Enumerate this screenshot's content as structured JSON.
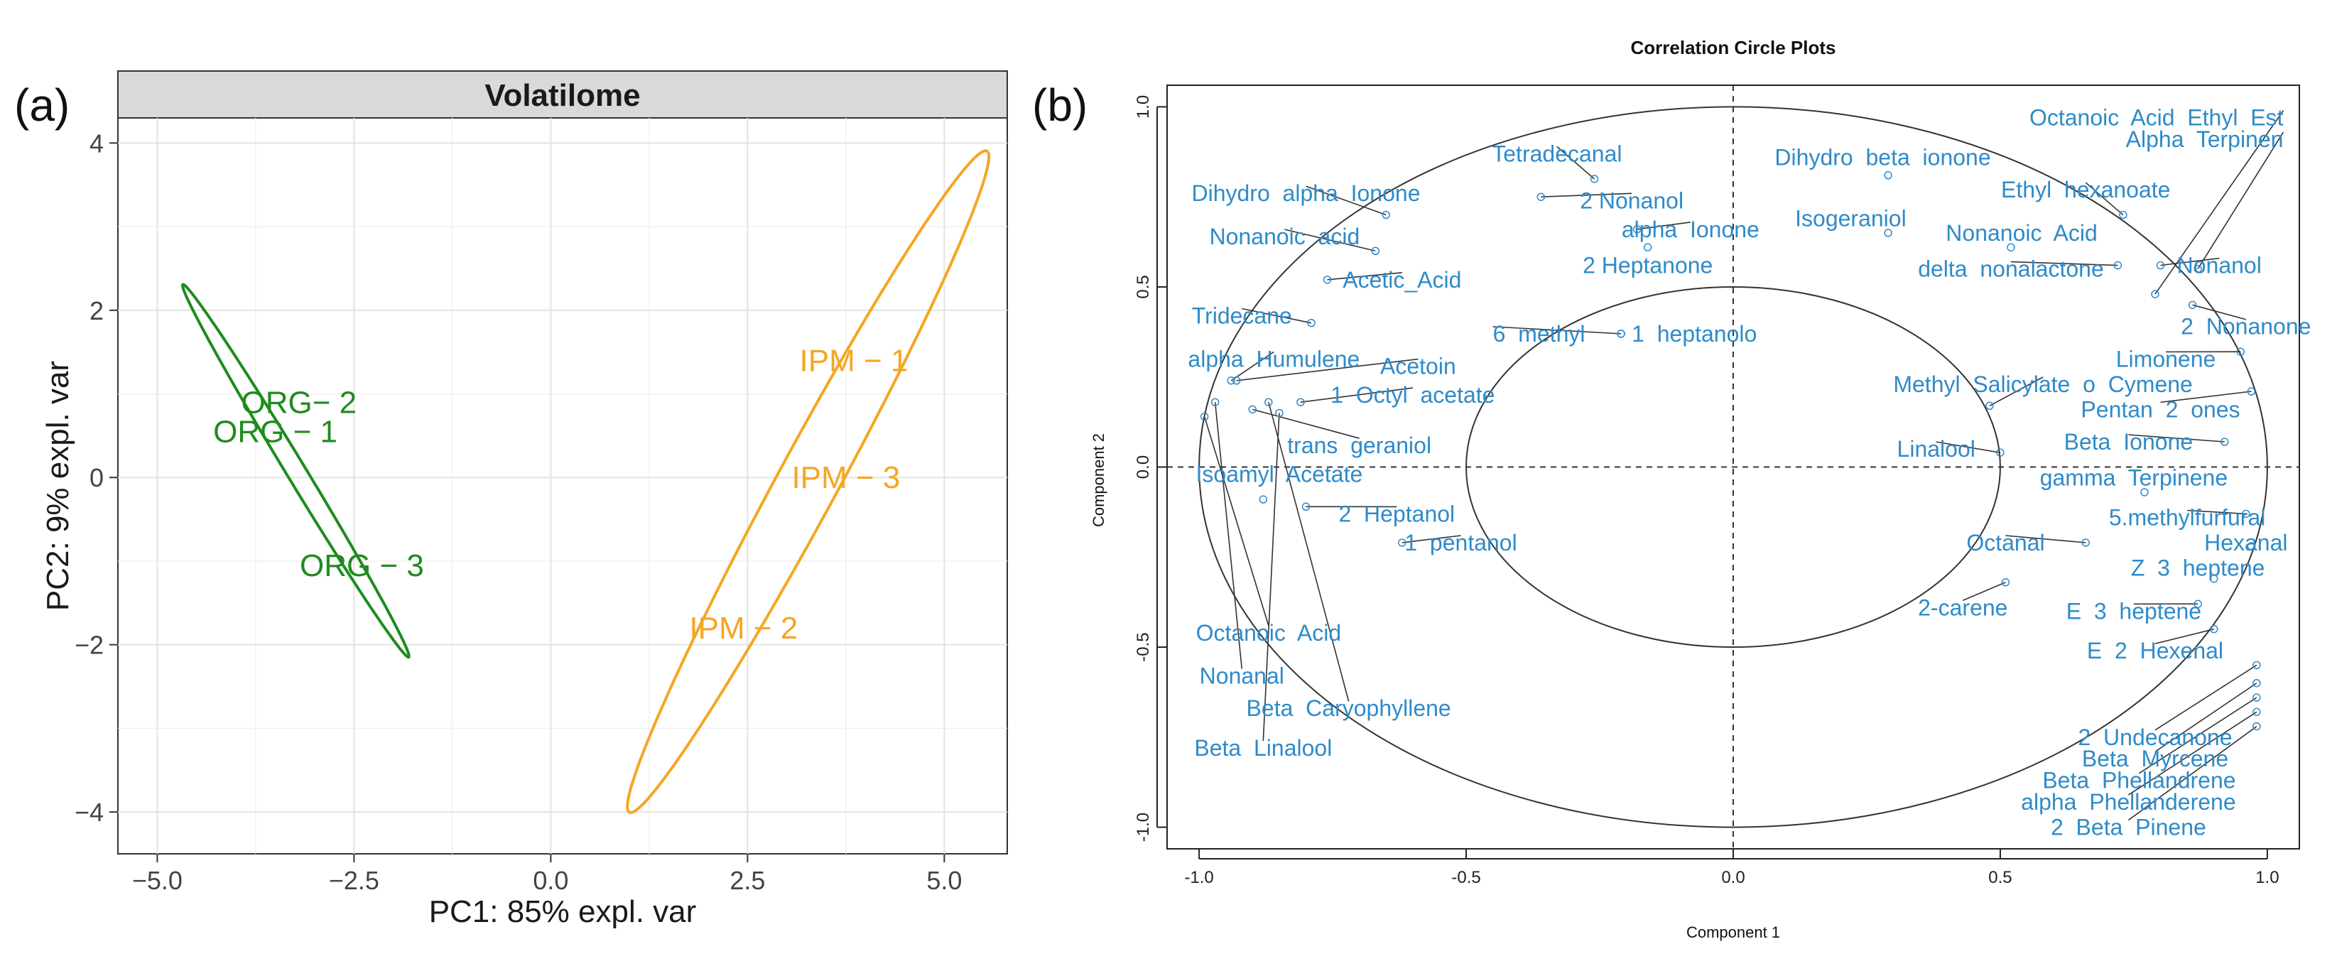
{
  "chart_data": [
    {
      "panel_label": "(a)",
      "type": "scatter",
      "strip_title": "Volatilome",
      "xlabel": "PC1: 85% expl. var",
      "ylabel": "PC2: 9% expl. var",
      "xlim": [
        -5.5,
        5.8
      ],
      "ylim": [
        -4.5,
        4.3
      ],
      "xticks": [
        -5.0,
        -2.5,
        0.0,
        2.5,
        5.0
      ],
      "xtick_labels": [
        "−5.0",
        "−2.5",
        "0.0",
        "2.5",
        "5.0"
      ],
      "yticks": [
        -4,
        -2,
        0,
        2,
        4
      ],
      "ytick_labels": [
        "−4",
        "−2",
        "0",
        "2",
        "4"
      ],
      "grid": true,
      "groups": [
        {
          "name": "ORG",
          "color": "#1e8c1e",
          "points": [
            {
              "label": "ORG− 2",
              "x": -3.2,
              "y": 0.9
            },
            {
              "label": "ORG − 1",
              "x": -3.5,
              "y": 0.55
            },
            {
              "label": "ORG − 3",
              "x": -2.4,
              "y": -1.05
            }
          ],
          "ellipse": {
            "cx": -3.24,
            "cy": 0.08,
            "semi_major": 2.65,
            "semi_minor": 0.12,
            "angle_deg": -57.2
          }
        },
        {
          "name": "IPM",
          "color": "#f5a623",
          "points": [
            {
              "label": "IPM − 1",
              "x": 3.85,
              "y": 1.4
            },
            {
              "label": "IPM − 3",
              "x": 3.75,
              "y": 0.0
            },
            {
              "label": "IPM − 2",
              "x": 2.45,
              "y": -1.8
            }
          ],
          "ellipse": {
            "cx": 3.27,
            "cy": -0.05,
            "semi_major": 4.56,
            "semi_minor": 0.38,
            "angle_deg": 60.1
          }
        }
      ]
    },
    {
      "panel_label": "(b)",
      "type": "scatter",
      "title": "Correlation Circle Plots",
      "xlabel": "Component  1",
      "ylabel": "Component  2",
      "xlim": [
        -1.06,
        1.06
      ],
      "ylim": [
        -1.06,
        1.06
      ],
      "xticks": [
        -1.0,
        -0.5,
        0.0,
        0.5,
        1.0
      ],
      "xtick_labels": [
        "-1.0",
        "-0.5",
        "0.0",
        "0.5",
        "1.0"
      ],
      "yticks": [
        -1.0,
        -0.5,
        0.0,
        0.5,
        1.0
      ],
      "ytick_labels": [
        "-1.0",
        "-0.5",
        "0.0",
        "0.5",
        "1.0"
      ],
      "circles": [
        {
          "radius": 1.0
        },
        {
          "radius": 0.5
        }
      ],
      "label_color": "#2e8bc9",
      "variables": [
        {
          "label": "Tetradecanal",
          "x": -0.26,
          "y": 0.8,
          "lx": -0.33,
          "ly": 0.87,
          "anchor": "middle"
        },
        {
          "label": "2 Nonanol",
          "x": -0.36,
          "y": 0.75,
          "lx": -0.19,
          "ly": 0.74,
          "anchor": "middle"
        },
        {
          "label": "Dihydro  alpha  Ionone",
          "x": -0.65,
          "y": 0.7,
          "lx": -0.8,
          "ly": 0.76,
          "anchor": "middle"
        },
        {
          "label": "Nonanoic  acid",
          "x": -0.67,
          "y": 0.6,
          "lx": -0.84,
          "ly": 0.64,
          "anchor": "middle"
        },
        {
          "label": "Acetic_Acid",
          "x": -0.76,
          "y": 0.52,
          "lx": -0.62,
          "ly": 0.52,
          "anchor": "middle"
        },
        {
          "label": "Tridecane",
          "x": -0.79,
          "y": 0.4,
          "lx": -0.92,
          "ly": 0.42,
          "anchor": "middle"
        },
        {
          "label": "alpha  Humulene",
          "x": -0.94,
          "y": 0.24,
          "lx": -0.86,
          "ly": 0.3,
          "anchor": "middle"
        },
        {
          "label": "Acetoin",
          "x": -0.93,
          "y": 0.24,
          "lx": -0.59,
          "ly": 0.28,
          "anchor": "middle"
        },
        {
          "label": "1  Octyl  acetate",
          "x": -0.81,
          "y": 0.18,
          "lx": -0.6,
          "ly": 0.2,
          "anchor": "middle"
        },
        {
          "label": "6  methyl",
          "x": -0.21,
          "y": 0.37,
          "lx": -0.45,
          "ly": 0.37,
          "anchor": "start"
        },
        {
          "label": "1  heptanolo",
          "x": -0.21,
          "y": 0.37,
          "lx": -0.19,
          "ly": 0.37,
          "anchor": "start"
        },
        {
          "label": "alpha  Ionone",
          "x": -0.18,
          "y": 0.66,
          "lx": -0.08,
          "ly": 0.66,
          "anchor": "middle"
        },
        {
          "label": "2 Heptanone",
          "x": -0.16,
          "y": 0.61,
          "lx": -0.16,
          "ly": 0.56,
          "anchor": "middle"
        },
        {
          "label": "trans  geraniol",
          "x": -0.9,
          "y": 0.16,
          "lx": -0.7,
          "ly": 0.06,
          "anchor": "middle"
        },
        {
          "label": "Isoamyl  Acetate",
          "x": -0.88,
          "y": -0.09,
          "lx": -0.85,
          "ly": -0.02,
          "anchor": "middle"
        },
        {
          "label": "2  Heptanol",
          "x": -0.8,
          "y": -0.11,
          "lx": -0.63,
          "ly": -0.13,
          "anchor": "middle"
        },
        {
          "label": "1  pentanol",
          "x": -0.62,
          "y": -0.21,
          "lx": -0.51,
          "ly": -0.21,
          "anchor": "middle"
        },
        {
          "label": "Octanoic  Acid",
          "x": -0.99,
          "y": 0.14,
          "lx": -0.87,
          "ly": -0.46,
          "anchor": "middle"
        },
        {
          "label": "Nonanal",
          "x": -0.97,
          "y": 0.18,
          "lx": -0.92,
          "ly": -0.58,
          "anchor": "middle"
        },
        {
          "label": "Beta  Caryophyllene",
          "x": -0.87,
          "y": 0.18,
          "lx": -0.72,
          "ly": -0.67,
          "anchor": "middle"
        },
        {
          "label": "Beta  Linalool",
          "x": -0.85,
          "y": 0.15,
          "lx": -0.88,
          "ly": -0.78,
          "anchor": "middle"
        },
        {
          "label": "Dihydro  beta  ionone",
          "x": 0.29,
          "y": 0.81,
          "lx": 0.28,
          "ly": 0.86,
          "anchor": "middle"
        },
        {
          "label": "Isogeraniol",
          "x": 0.29,
          "y": 0.65,
          "lx": 0.22,
          "ly": 0.69,
          "anchor": "middle"
        },
        {
          "label": "Nonanoic  Acid",
          "x": 0.52,
          "y": 0.61,
          "lx": 0.54,
          "ly": 0.65,
          "anchor": "middle"
        },
        {
          "label": "delta  nonalactone",
          "x": 0.72,
          "y": 0.56,
          "lx": 0.52,
          "ly": 0.55,
          "anchor": "middle"
        },
        {
          "label": "Octanoic  Acid  Ethyl  Est",
          "x": 0.79,
          "y": 0.48,
          "lx": 1.03,
          "ly": 0.97,
          "anchor": "end"
        },
        {
          "label": "Alpha  Terpinen",
          "x": 0.87,
          "y": 0.55,
          "lx": 1.03,
          "ly": 0.91,
          "anchor": "end"
        },
        {
          "label": "Ethyl  hexanoate",
          "x": 0.73,
          "y": 0.7,
          "lx": 0.66,
          "ly": 0.77,
          "anchor": "middle"
        },
        {
          "label": "Nonanol",
          "x": 0.8,
          "y": 0.56,
          "lx": 0.91,
          "ly": 0.56,
          "anchor": "middle"
        },
        {
          "label": "2  Nonanone",
          "x": 0.86,
          "y": 0.45,
          "lx": 0.96,
          "ly": 0.39,
          "anchor": "middle"
        },
        {
          "label": "Limonene",
          "x": 0.95,
          "y": 0.32,
          "lx": 0.81,
          "ly": 0.3,
          "anchor": "middle"
        },
        {
          "label": "Methyl  Salicylate  o  Cymene",
          "x": 0.48,
          "y": 0.17,
          "lx": 0.58,
          "ly": 0.23,
          "anchor": "middle"
        },
        {
          "label": "Pentan  2  ones",
          "x": 0.97,
          "y": 0.21,
          "lx": 0.8,
          "ly": 0.16,
          "anchor": "middle"
        },
        {
          "label": "Linalool",
          "x": 0.5,
          "y": 0.04,
          "lx": 0.38,
          "ly": 0.05,
          "anchor": "middle"
        },
        {
          "label": "Beta  Ionone",
          "x": 0.92,
          "y": 0.07,
          "lx": 0.74,
          "ly": 0.07,
          "anchor": "middle"
        },
        {
          "label": "gamma  Terpinene",
          "x": 0.77,
          "y": -0.07,
          "lx": 0.75,
          "ly": -0.03,
          "anchor": "middle"
        },
        {
          "label": "5.methylfurfural",
          "x": 0.96,
          "y": -0.13,
          "lx": 0.85,
          "ly": -0.14,
          "anchor": "middle"
        },
        {
          "label": "Hexanal",
          "x": 0.97,
          "y": -0.22,
          "lx": 0.96,
          "ly": -0.21,
          "anchor": "middle"
        },
        {
          "label": "Octanal",
          "x": 0.66,
          "y": -0.21,
          "lx": 0.51,
          "ly": -0.21,
          "anchor": "middle"
        },
        {
          "label": "Z  3  heptene",
          "x": 0.9,
          "y": -0.31,
          "lx": 0.87,
          "ly": -0.28,
          "anchor": "middle"
        },
        {
          "label": "2-carene",
          "x": 0.51,
          "y": -0.32,
          "lx": 0.43,
          "ly": -0.39,
          "anchor": "middle"
        },
        {
          "label": "E  3  heptene",
          "x": 0.87,
          "y": -0.38,
          "lx": 0.75,
          "ly": -0.4,
          "anchor": "middle"
        },
        {
          "label": "E  2  Hexenal",
          "x": 0.9,
          "y": -0.45,
          "lx": 0.79,
          "ly": -0.51,
          "anchor": "middle"
        },
        {
          "label": "2  Undecanone",
          "x": 0.98,
          "y": -0.55,
          "lx": 0.79,
          "ly": -0.75,
          "anchor": "middle"
        },
        {
          "label": "Beta  Myrcene",
          "x": 0.98,
          "y": -0.6,
          "lx": 0.79,
          "ly": -0.81,
          "anchor": "middle"
        },
        {
          "label": "Beta  Phellandrene",
          "x": 0.98,
          "y": -0.64,
          "lx": 0.76,
          "ly": -0.87,
          "anchor": "middle"
        },
        {
          "label": "alpha  Phellanderene",
          "x": 0.98,
          "y": -0.68,
          "lx": 0.74,
          "ly": -0.93,
          "anchor": "middle"
        },
        {
          "label": "2  Beta  Pinene",
          "x": 0.98,
          "y": -0.72,
          "lx": 0.74,
          "ly": -1.0,
          "anchor": "middle"
        }
      ]
    }
  ]
}
